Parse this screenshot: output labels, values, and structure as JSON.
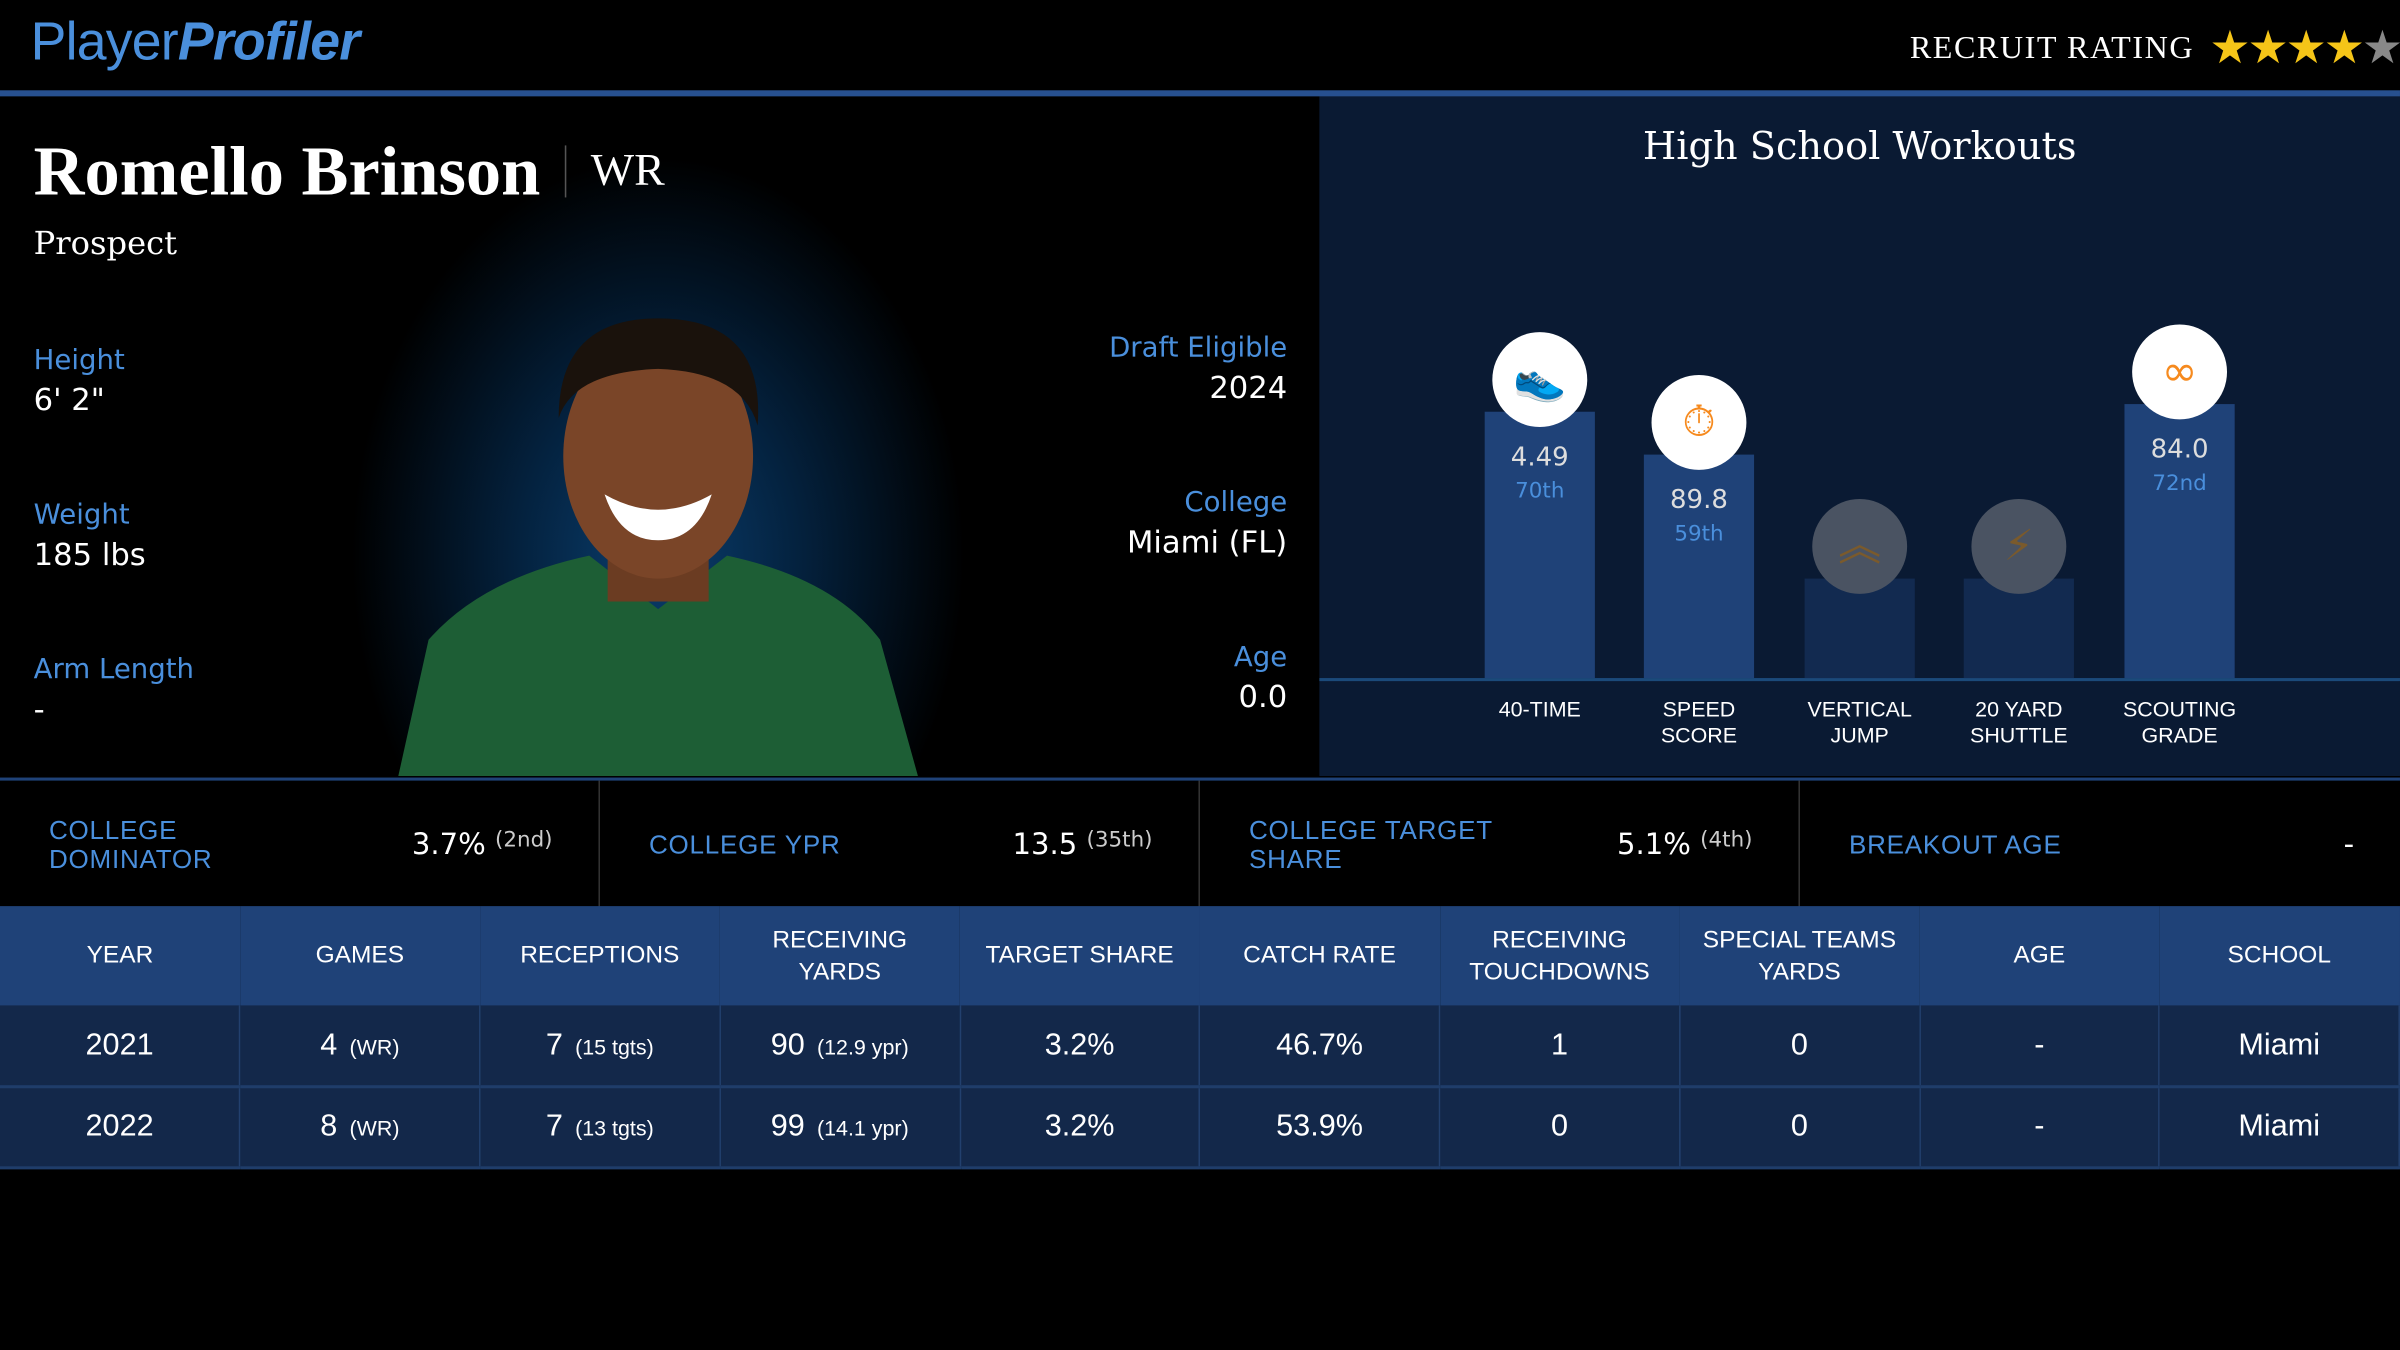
{
  "header": {
    "logo_a": "Player",
    "logo_b": "Profiler",
    "recruit_label": "RECRUIT RATING",
    "recruit_stars": 4,
    "recruit_max": 5
  },
  "player": {
    "name": "Romello Brinson",
    "position": "WR",
    "status": "Prospect",
    "left_stats": [
      {
        "label": "Height",
        "value": "6' 2\""
      },
      {
        "label": "Weight",
        "value": "185 lbs"
      },
      {
        "label": "Arm Length",
        "value": "-"
      }
    ],
    "right_stats": [
      {
        "label": "Draft Eligible",
        "value": "2024"
      },
      {
        "label": "College",
        "value": "Miami (FL)"
      },
      {
        "label": "Age",
        "value": "0.0"
      }
    ]
  },
  "workouts": {
    "title": "High School Workouts",
    "items": [
      {
        "label1": "40-TIME",
        "label2": "",
        "value": "4.49",
        "pct": "70th",
        "pct_num": 70,
        "icon": "shoe-icon",
        "active": true
      },
      {
        "label1": "SPEED",
        "label2": "SCORE",
        "value": "89.8",
        "pct": "59th",
        "pct_num": 59,
        "icon": "stopwatch-icon",
        "active": true
      },
      {
        "label1": "VERTICAL",
        "label2": "JUMP",
        "value": "",
        "pct": "",
        "pct_num": null,
        "icon": "chevrons-up-icon",
        "active": false
      },
      {
        "label1": "20 YARD",
        "label2": "SHUTTLE",
        "value": "",
        "pct": "",
        "pct_num": null,
        "icon": "lightning-icon",
        "active": false
      },
      {
        "label1": "SCOUTING",
        "label2": "GRADE",
        "value": "84.0",
        "pct": "72nd",
        "pct_num": 72,
        "icon": "binoculars-icon",
        "active": true
      }
    ]
  },
  "metrics": [
    {
      "label": "COLLEGE DOMINATOR",
      "value": "3.7%",
      "rank": "(2nd)"
    },
    {
      "label": "COLLEGE YPR",
      "value": "13.5",
      "rank": "(35th)"
    },
    {
      "label": "COLLEGE TARGET SHARE",
      "value": "5.1%",
      "rank": "(4th)"
    },
    {
      "label": "BREAKOUT AGE",
      "value": "-",
      "rank": ""
    }
  ],
  "table": {
    "headers": [
      "YEAR",
      "GAMES",
      "RECEPTIONS",
      "RECEIVING YARDS",
      "TARGET SHARE",
      "CATCH RATE",
      "RECEIVING TOUCHDOWNS",
      "SPECIAL TEAMS YARDS",
      "AGE",
      "SCHOOL"
    ],
    "rows": [
      [
        [
          "2021",
          ""
        ],
        [
          "4",
          "(WR)"
        ],
        [
          "7",
          "(15 tgts)"
        ],
        [
          "90",
          "(12.9 ypr)"
        ],
        [
          "3.2%",
          ""
        ],
        [
          "46.7%",
          ""
        ],
        [
          "1",
          ""
        ],
        [
          "0",
          ""
        ],
        [
          "-",
          ""
        ],
        [
          "Miami",
          ""
        ]
      ],
      [
        [
          "2022",
          ""
        ],
        [
          "8",
          "(WR)"
        ],
        [
          "7",
          "(13 tgts)"
        ],
        [
          "99",
          "(14.1 ypr)"
        ],
        [
          "3.2%",
          ""
        ],
        [
          "53.9%",
          ""
        ],
        [
          "0",
          ""
        ],
        [
          "0",
          ""
        ],
        [
          "-",
          ""
        ],
        [
          "Miami",
          ""
        ]
      ]
    ]
  },
  "colors": {
    "accent": "#4a8fdc",
    "star": "#f5c518",
    "icon": "#f68a1e",
    "header_bg": "#1f4278"
  }
}
